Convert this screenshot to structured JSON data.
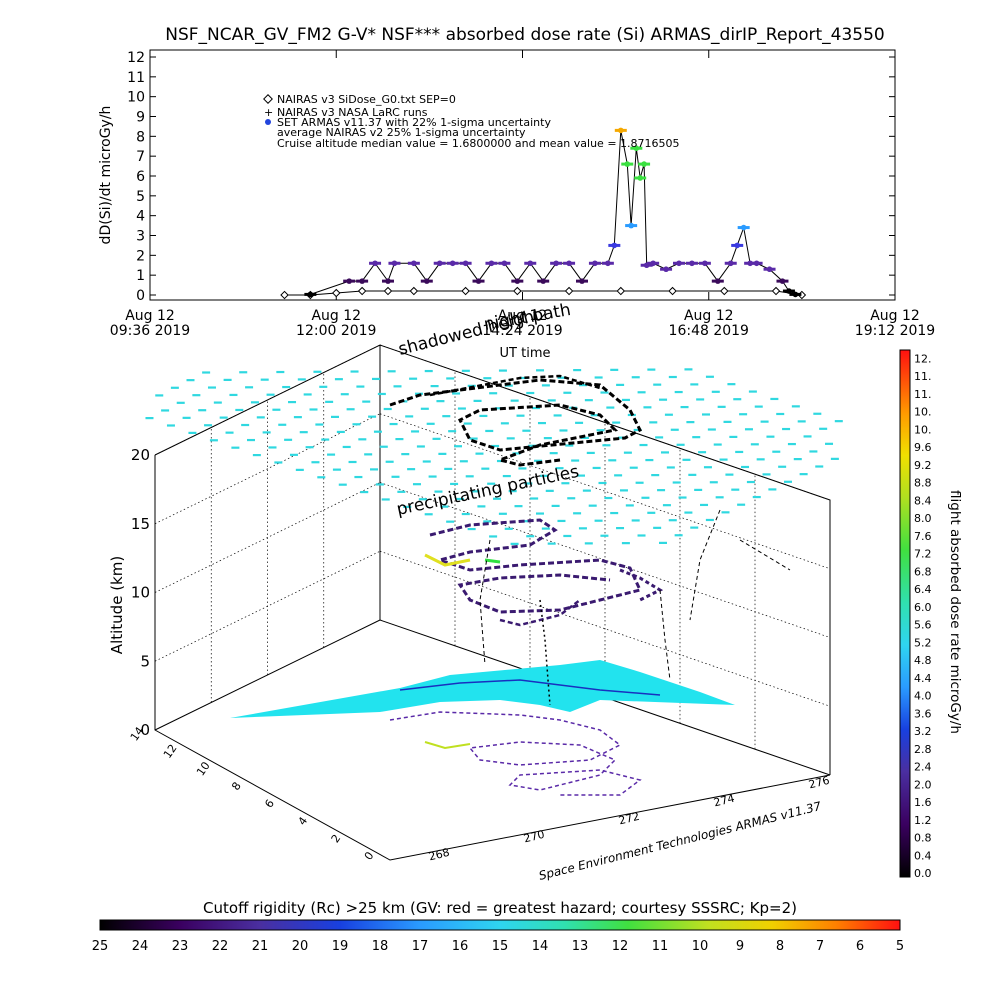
{
  "title": "NSF_NCAR_GV_FM2 G-V* NSF*** absorbed dose rate (Si) ARMAS_dirIP_Report_43550",
  "timeseries": {
    "ylabel": "dD(Si)/dt microGy/h",
    "xlabel": "UT time",
    "legend": [
      "NAIRAS v3 SiDose_G0.txt SEP=0",
      "NAIRAS v3 NASA LaRC runs",
      "SET ARMAS v11.37 with 22% 1-sigma uncertainty",
      "average NAIRAS v2 25% 1-sigma uncertainty",
      "Cruise altitude median value = 1.6800000 and mean value = 1.8716505"
    ],
    "legend_marker_colors": [
      "#000000",
      "#000000",
      "#2244dd"
    ]
  },
  "chart_data": [
    {
      "type": "line",
      "title": "NSF_NCAR_GV_FM2 G-V* NSF*** absorbed dose rate (Si) ARMAS_dirIP_Report_43550",
      "xlabel": "UT time",
      "ylabel": "dD(Si)/dt microGy/h",
      "ylim": [
        0,
        12
      ],
      "y_ticks": [
        "0",
        "1",
        "2",
        "3",
        "4",
        "5",
        "6",
        "7",
        "8",
        "9",
        "10",
        "11",
        "12"
      ],
      "x_tick_labels": [
        [
          "Aug 12",
          "09:36 2019"
        ],
        [
          "Aug 12",
          "12:00 2019"
        ],
        [
          "Aug 12",
          "14:24 2019"
        ],
        [
          "Aug 12",
          "16:48 2019"
        ],
        [
          "Aug 12",
          "19:12 2019"
        ]
      ],
      "xlim": [
        "2019-08-12 09:36",
        "2019-08-12 19:12"
      ],
      "series": [
        {
          "name": "SET ARMAS v11.37 with 22% 1-sigma uncertainty",
          "marker": "filled-circle",
          "x": [
            "11:40",
            "12:10",
            "12:20",
            "12:30",
            "12:40",
            "12:45",
            "13:00",
            "13:10",
            "13:20",
            "13:30",
            "13:40",
            "13:50",
            "14:00",
            "14:10",
            "14:20",
            "14:30",
            "14:40",
            "14:50",
            "15:00",
            "15:10",
            "15:20",
            "15:30",
            "15:35",
            "15:40",
            "15:45",
            "15:48",
            "15:52",
            "15:55",
            "15:58",
            "16:00",
            "16:05",
            "16:15",
            "16:25",
            "16:35",
            "16:45",
            "16:55",
            "17:05",
            "17:10",
            "17:15",
            "17:20",
            "17:25",
            "17:35",
            "17:45",
            "17:50",
            "17:55"
          ],
          "y": [
            0.03,
            0.7,
            0.7,
            1.6,
            0.7,
            1.6,
            1.6,
            0.7,
            1.6,
            1.6,
            1.6,
            0.7,
            1.6,
            1.6,
            0.7,
            1.6,
            0.7,
            1.6,
            1.6,
            0.7,
            1.6,
            1.6,
            2.5,
            8.3,
            6.6,
            3.5,
            7.4,
            5.9,
            6.6,
            1.5,
            1.6,
            1.3,
            1.6,
            1.6,
            1.6,
            0.7,
            1.6,
            2.5,
            3.4,
            1.6,
            1.6,
            1.3,
            0.7,
            0.2,
            0.03
          ]
        },
        {
          "name": "NAIRAS v3 SiDose_G0.txt SEP=0",
          "marker": "open-diamond",
          "x": [
            "11:20",
            "11:40",
            "12:00",
            "12:20",
            "12:40",
            "13:00",
            "13:40",
            "14:20",
            "15:00",
            "15:40",
            "16:20",
            "17:00",
            "17:40",
            "18:00"
          ],
          "y": [
            0.0,
            0.0,
            0.1,
            0.2,
            0.2,
            0.2,
            0.2,
            0.2,
            0.2,
            0.2,
            0.2,
            0.2,
            0.2,
            0.0
          ]
        }
      ]
    },
    {
      "type": "scatter",
      "title": "",
      "xlabel": "",
      "ylabel": "",
      "zlabel": "Altitude (km)",
      "zlim": [
        0,
        20
      ],
      "z_ticks": [
        "0",
        "5",
        "10",
        "15",
        "20"
      ],
      "lat_ticks": [
        "0",
        "2",
        "4",
        "6",
        "8",
        "10",
        "12",
        "14"
      ],
      "lon_ticks": [
        "268",
        "270",
        "272",
        "274",
        "276"
      ],
      "annotations": [
        "shadowed height",
        "night path",
        "precipitating particles"
      ],
      "credit": "Space Environment Technologies ARMAS v11.37",
      "colorbar": {
        "label": "flight absorbed dose rate microGy/h",
        "ticks": [
          "0.0",
          "0.4",
          "0.8",
          "1.2",
          "1.6",
          "2.0",
          "2.4",
          "2.8",
          "3.2",
          "3.6",
          "4.0",
          "4.4",
          "4.8",
          "5.2",
          "5.6",
          "6.0",
          "6.4",
          "6.8",
          "7.2",
          "7.6",
          "8.0",
          "8.4",
          "8.8",
          "9.2",
          "9.6",
          "10.",
          "10.",
          "11.",
          "11.",
          "12."
        ]
      },
      "rigidity_bar": {
        "label": "Cutoff rigidity (Rc) >25 km (GV: red = greatest hazard; courtesy SSSRC; Kp=2)",
        "ticks": [
          "25",
          "24",
          "23",
          "22",
          "21",
          "20",
          "19",
          "18",
          "17",
          "16",
          "15",
          "14",
          "13",
          "12",
          "11",
          "10",
          "9",
          "8",
          "7",
          "6",
          "5"
        ]
      }
    }
  ]
}
